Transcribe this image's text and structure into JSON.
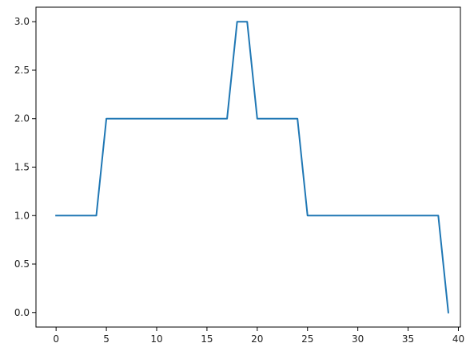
{
  "chart_data": {
    "type": "line",
    "title": "",
    "xlabel": "",
    "ylabel": "",
    "xlim": [
      -2,
      40.2
    ],
    "ylim": [
      -0.15,
      3.15
    ],
    "grid": false,
    "x_ticks": [
      0,
      5,
      10,
      15,
      20,
      25,
      30,
      35,
      40
    ],
    "y_ticks": [
      0.0,
      0.5,
      1.0,
      1.5,
      2.0,
      2.5,
      3.0
    ],
    "x_tick_labels": [
      "0",
      "5",
      "10",
      "15",
      "20",
      "25",
      "30",
      "35",
      "40"
    ],
    "y_tick_labels": [
      "0.0",
      "0.5",
      "1.0",
      "1.5",
      "2.0",
      "2.5",
      "3.0"
    ],
    "series": [
      {
        "color": "#1f77b4",
        "x": [
          0,
          1,
          2,
          3,
          4,
          5,
          6,
          7,
          8,
          9,
          10,
          11,
          12,
          13,
          14,
          15,
          16,
          17,
          18,
          19,
          20,
          21,
          22,
          23,
          24,
          25,
          26,
          27,
          28,
          29,
          30,
          31,
          32,
          33,
          34,
          35,
          36,
          37,
          38,
          39
        ],
        "y": [
          1,
          1,
          1,
          1,
          1,
          2,
          2,
          2,
          2,
          2,
          2,
          2,
          2,
          2,
          2,
          2,
          2,
          2,
          3,
          3,
          2,
          2,
          2,
          2,
          2,
          1,
          1,
          1,
          1,
          1,
          1,
          1,
          1,
          1,
          1,
          1,
          1,
          1,
          1,
          0
        ]
      }
    ]
  }
}
